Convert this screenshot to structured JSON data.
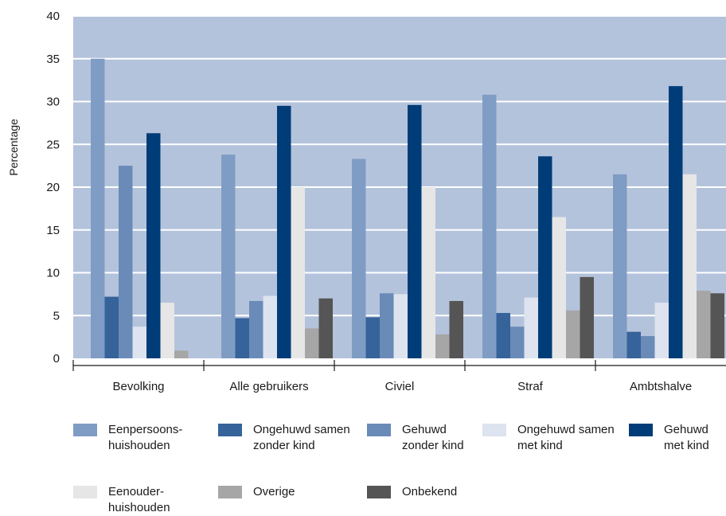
{
  "chart_data": {
    "type": "bar",
    "ylabel": "Percentage",
    "ylim": [
      0,
      40
    ],
    "yticks": [
      0,
      5,
      10,
      15,
      20,
      25,
      30,
      35,
      40
    ],
    "grid": true,
    "categories": [
      "Bevolking",
      "Alle gebruikers",
      "Civiel",
      "Straf",
      "Ambtshalve"
    ],
    "series": [
      {
        "name": "Eenpersoons-\nhuishouden",
        "color": "#7f9cc4",
        "values": [
          35.0,
          23.8,
          23.3,
          30.8,
          21.5
        ]
      },
      {
        "name": "Ongehuwd samen\nzonder kind",
        "color": "#35639a",
        "values": [
          7.2,
          4.7,
          4.8,
          5.3,
          3.1
        ]
      },
      {
        "name": "Gehuwd\nzonder kind",
        "color": "#6a8bb8",
        "values": [
          22.5,
          6.7,
          7.6,
          3.7,
          2.6
        ]
      },
      {
        "name": "Ongehuwd samen\nmet kind",
        "color": "#dde3ef",
        "values": [
          3.7,
          7.3,
          7.5,
          7.1,
          6.5
        ]
      },
      {
        "name": "Gehuwd\nmet kind",
        "color": "#003d78",
        "values": [
          26.3,
          29.5,
          29.6,
          23.6,
          31.8
        ]
      },
      {
        "name": "Eenouder-\nhuishouden",
        "color": "#e6e6e6",
        "values": [
          6.5,
          20.0,
          20.0,
          16.5,
          21.5
        ]
      },
      {
        "name": "Overige",
        "color": "#a6a6a6",
        "values": [
          0.9,
          3.5,
          2.8,
          5.6,
          7.9
        ]
      },
      {
        "name": "Onbekend",
        "color": "#555555",
        "values": [
          0.0,
          7.0,
          6.7,
          9.5,
          7.6
        ]
      }
    ],
    "legend_position": "bottom",
    "plot_background": "#b4c3dc"
  }
}
